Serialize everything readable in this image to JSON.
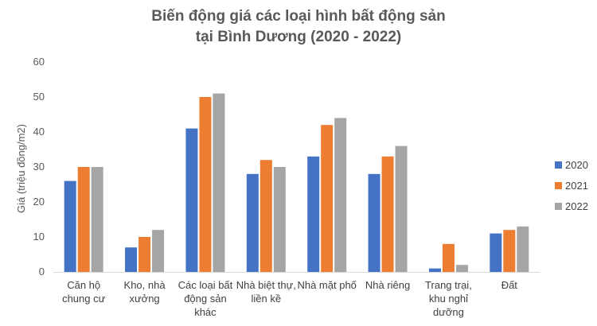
{
  "chart_data": {
    "type": "bar",
    "title_lines": [
      "Biến động giá các loại hình bất động sản",
      "tại Bình Dương (2020 - 2022)"
    ],
    "ylabel": "Giá (triệu đồng/m2)",
    "xlabel": "",
    "ylim": [
      0,
      60
    ],
    "yticks": [
      0,
      10,
      20,
      30,
      40,
      50,
      60
    ],
    "grid": false,
    "legend_position": "right",
    "categories": [
      [
        "Căn hộ",
        "chung cư"
      ],
      [
        "Kho, nhà",
        "xưởng"
      ],
      [
        "Các loại bất",
        "động sản",
        "khác"
      ],
      [
        "Nhà biệt thự,",
        "liền kề"
      ],
      [
        "Nhà mặt phố"
      ],
      [
        "Nhà riêng"
      ],
      [
        "Trang trại,",
        "khu nghỉ",
        "dưỡng"
      ],
      [
        "Đất"
      ]
    ],
    "series": [
      {
        "name": "2020",
        "color": "#4472C4",
        "values": [
          26,
          7,
          41,
          28,
          33,
          28,
          1,
          11
        ]
      },
      {
        "name": "2021",
        "color": "#ED7D31",
        "values": [
          30,
          10,
          50,
          32,
          42,
          33,
          8,
          12
        ]
      },
      {
        "name": "2022",
        "color": "#A5A5A5",
        "values": [
          30,
          12,
          51,
          30,
          44,
          36,
          2,
          13
        ]
      }
    ]
  }
}
